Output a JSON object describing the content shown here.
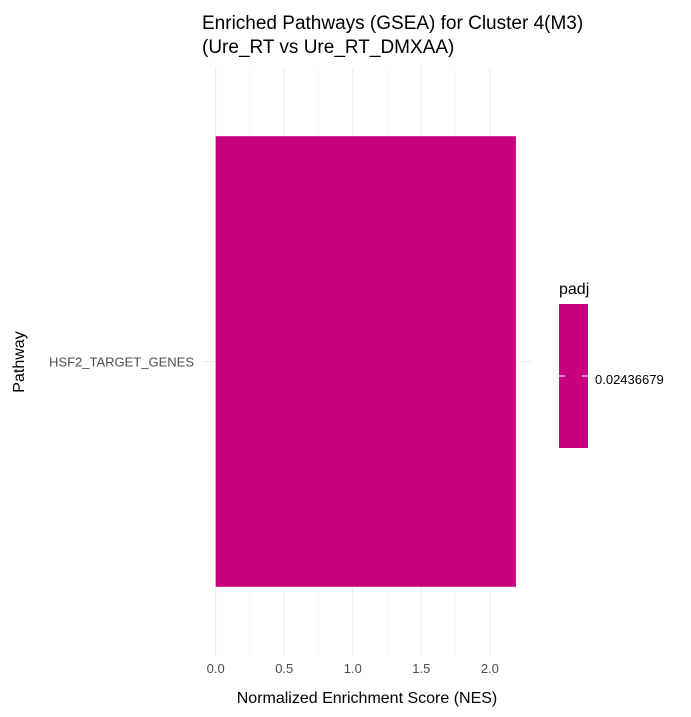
{
  "chart_data": {
    "type": "bar",
    "orientation": "horizontal",
    "title_line1": "Enriched Pathways (GSEA) for Cluster 4(M3)",
    "title_line2": "(Ure_RT vs Ure_RT_DMXAA)",
    "xlabel": "Normalized Enrichment Score (NES)",
    "ylabel": "Pathway",
    "categories": [
      "HSF2_TARGET_GENES"
    ],
    "values": [
      2.19
    ],
    "padj": [
      0.02436679
    ],
    "xlim": [
      -0.1,
      2.3
    ],
    "x_ticks": [
      "0.0",
      "0.5",
      "1.0",
      "1.5",
      "2.0"
    ],
    "x_tick_values": [
      0,
      0.5,
      1.0,
      1.5,
      2.0
    ],
    "grid": true,
    "bar_color": "#c8007f",
    "legend": {
      "title": "padj",
      "labels": [
        "0.02436679"
      ],
      "position": "right"
    }
  }
}
